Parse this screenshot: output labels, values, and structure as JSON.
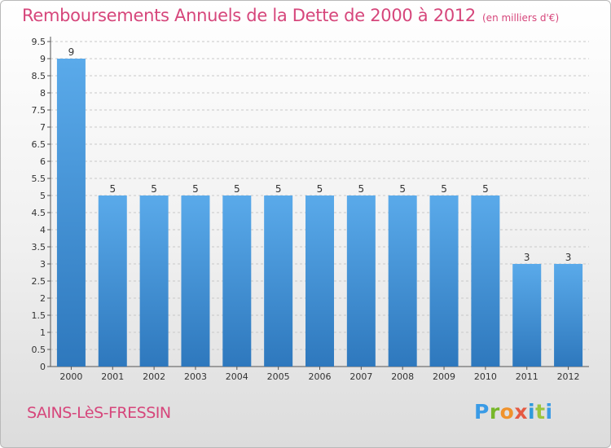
{
  "chart_data": {
    "type": "bar",
    "title": "Remboursements Annuels de la Dette de 2000 à 2012",
    "unit": "(en milliers d'€)",
    "categories": [
      "2000",
      "2001",
      "2002",
      "2003",
      "2004",
      "2005",
      "2006",
      "2007",
      "2008",
      "2009",
      "2010",
      "2011",
      "2012"
    ],
    "values": [
      9,
      5,
      5,
      5,
      5,
      5,
      5,
      5,
      5,
      5,
      5,
      3,
      3
    ],
    "data_labels": [
      "9",
      "5",
      "5",
      "5",
      "5",
      "5",
      "5",
      "5",
      "5",
      "5",
      "5",
      "3",
      "3"
    ],
    "y_ticks": [
      "0",
      "0.5",
      "1",
      "1.5",
      "2",
      "2.5",
      "3",
      "3.5",
      "4",
      "4.5",
      "5",
      "5.5",
      "6",
      "6.5",
      "7",
      "7.5",
      "8",
      "8.5",
      "9",
      "9.5"
    ],
    "ylim": [
      0,
      9.5
    ],
    "grid": "horizontal dashed",
    "bar_color": "#4a9fe0",
    "bar_color_top": "#5aaaea",
    "bar_color_bottom": "#2e78bd"
  },
  "footer": {
    "location": "SAINS-LèS-FRESSIN",
    "logo_letters": [
      "P",
      "r",
      "o",
      "x",
      "i",
      "t",
      "i"
    ]
  },
  "colors": {
    "accent": "#d6467b"
  }
}
